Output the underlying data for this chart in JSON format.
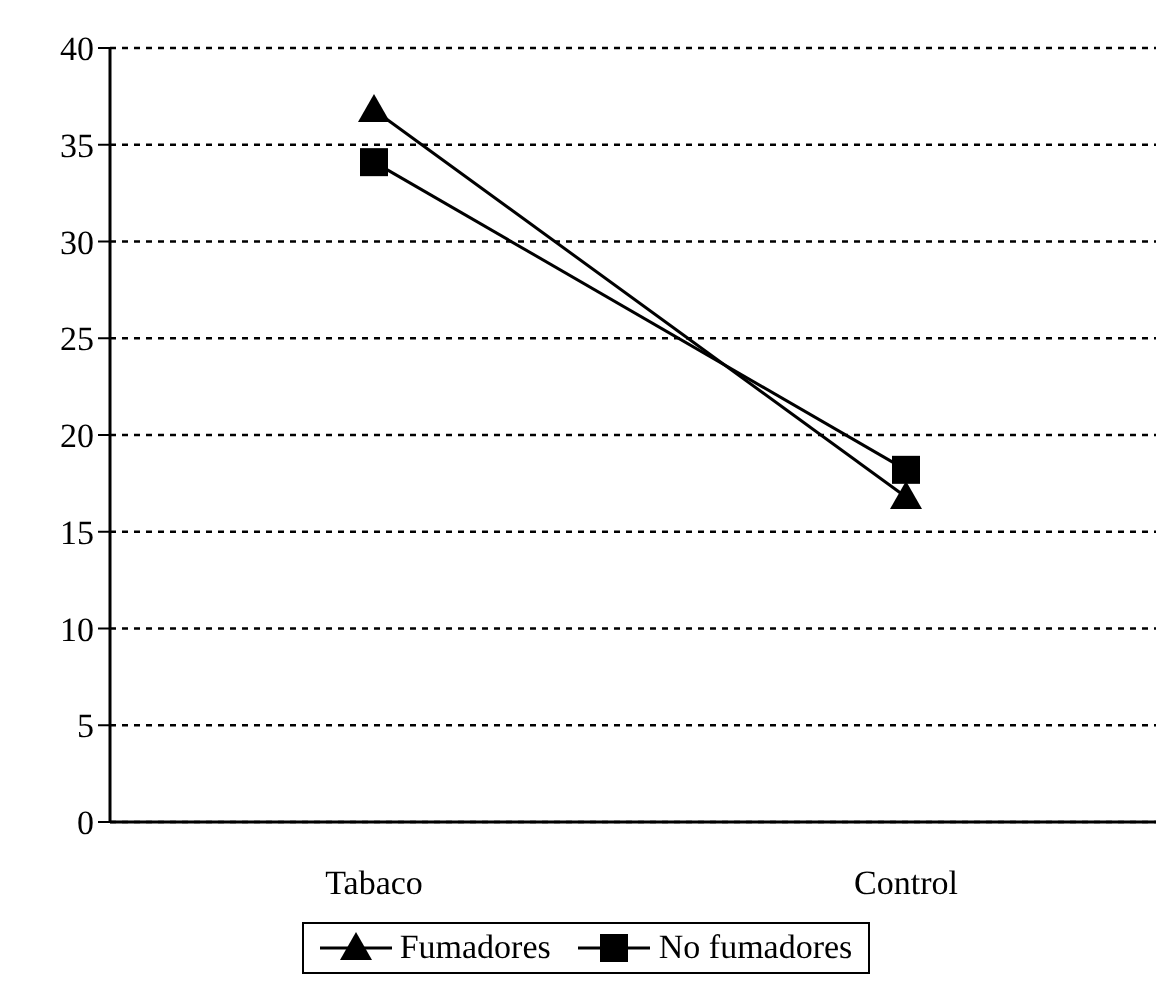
{
  "chart_data": {
    "type": "line",
    "categories": [
      "Tabaco",
      "Control"
    ],
    "series": [
      {
        "name": "Fumadores",
        "color": "#000000",
        "values": [
          36.8,
          16.8
        ],
        "marker": "triangle"
      },
      {
        "name": "No fumadores",
        "color": "#000000",
        "values": [
          34.1,
          18.2
        ],
        "marker": "square"
      }
    ],
    "ylim": [
      0,
      40
    ],
    "yticks": [
      0,
      5,
      10,
      15,
      20,
      25,
      30,
      35,
      40
    ],
    "grid": "y",
    "legend": "bottom",
    "line_style": "solid"
  }
}
